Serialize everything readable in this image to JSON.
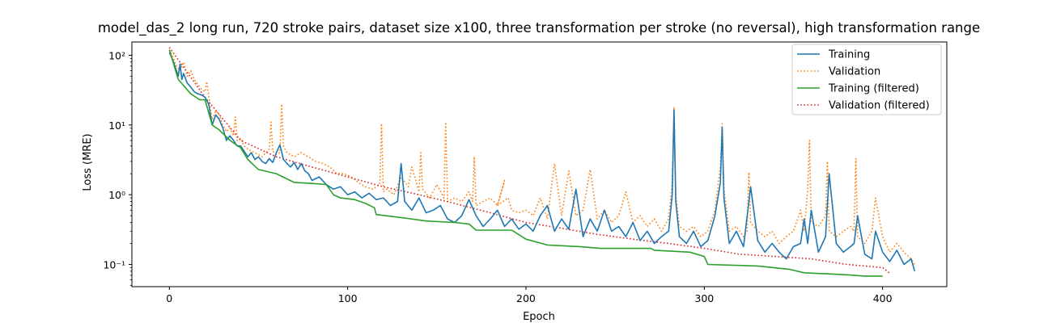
{
  "chart_data": {
    "type": "line",
    "title": "model_das_2 long run, 720 stroke pairs, dataset size x100, three transformation per stroke (no reversal), high transformation range",
    "xlabel": "Epoch",
    "ylabel": "Loss (MRE)",
    "xlim": [
      -21,
      436
    ],
    "ylim": [
      0.048,
      155
    ],
    "yscale": "log",
    "xticks": [
      0,
      100,
      200,
      300,
      400
    ],
    "xtick_labels": [
      "0",
      "100",
      "200",
      "300",
      "400"
    ],
    "yticks": [
      0.1,
      1,
      10,
      100
    ],
    "ytick_labels": [
      "10⁻¹",
      "10⁰",
      "10¹",
      "10²"
    ],
    "grid": false,
    "legend_position": "top-right",
    "series": [
      {
        "name": "Training",
        "color": "#1f77b4",
        "style": "solid",
        "x": [
          0,
          2,
          4,
          5,
          6,
          7,
          8,
          10,
          12,
          14,
          16,
          18,
          20,
          22,
          24,
          26,
          28,
          30,
          32,
          34,
          36,
          38,
          40,
          42,
          44,
          46,
          48,
          50,
          52,
          54,
          56,
          58,
          60,
          62,
          64,
          66,
          68,
          70,
          72,
          74,
          76,
          78,
          80,
          84,
          88,
          92,
          96,
          100,
          104,
          108,
          112,
          116,
          120,
          124,
          128,
          130,
          132,
          136,
          140,
          144,
          148,
          152,
          156,
          160,
          164,
          168,
          172,
          176,
          180,
          184,
          188,
          192,
          196,
          200,
          204,
          208,
          212,
          216,
          220,
          224,
          228,
          232,
          236,
          240,
          244,
          248,
          252,
          256,
          260,
          264,
          268,
          272,
          276,
          280,
          282,
          283,
          284,
          286,
          290,
          294,
          298,
          302,
          306,
          309,
          310,
          311,
          314,
          318,
          322,
          326,
          330,
          334,
          338,
          342,
          346,
          350,
          354,
          356,
          358,
          360,
          364,
          368,
          370,
          374,
          378,
          382,
          384,
          386,
          390,
          394,
          396,
          400,
          404,
          408,
          412,
          416,
          418
        ],
        "y": [
          110,
          85,
          60,
          50,
          75,
          45,
          55,
          40,
          35,
          30,
          28,
          27,
          25,
          20,
          10,
          14,
          12,
          9,
          6,
          7,
          6,
          5,
          5,
          4.2,
          3.5,
          4,
          3.2,
          3.5,
          3,
          2.8,
          3.3,
          2.9,
          4,
          5.2,
          3.2,
          2.8,
          2.5,
          2.9,
          2.3,
          2.8,
          2.2,
          2,
          1.6,
          1.8,
          1.4,
          1.2,
          1.3,
          1,
          1.1,
          0.9,
          1.05,
          0.85,
          0.9,
          0.7,
          0.8,
          2.8,
          0.8,
          0.6,
          0.9,
          0.55,
          0.6,
          0.7,
          0.45,
          0.4,
          0.5,
          0.85,
          0.5,
          0.35,
          0.45,
          0.6,
          0.35,
          0.45,
          0.32,
          0.38,
          0.3,
          0.5,
          0.7,
          0.3,
          0.45,
          0.32,
          1.2,
          0.25,
          0.45,
          0.3,
          0.6,
          0.3,
          0.35,
          0.25,
          0.4,
          0.22,
          0.3,
          0.2,
          0.25,
          0.3,
          1.0,
          16.5,
          0.8,
          0.25,
          0.2,
          0.3,
          0.18,
          0.22,
          0.5,
          1.5,
          9.2,
          0.9,
          0.2,
          0.3,
          0.18,
          1.3,
          0.22,
          0.15,
          0.2,
          0.15,
          0.12,
          0.18,
          0.2,
          0.45,
          0.2,
          0.6,
          0.15,
          0.25,
          2.0,
          0.2,
          0.15,
          0.18,
          0.2,
          0.5,
          0.14,
          0.12,
          0.3,
          0.15,
          0.11,
          0.16,
          0.1,
          0.12,
          0.08
        ]
      },
      {
        "name": "Validation",
        "color": "#ff7f0e",
        "style": "dotted",
        "x": [
          0,
          2,
          4,
          6,
          8,
          10,
          12,
          14,
          16,
          18,
          20,
          21,
          22,
          24,
          26,
          28,
          30,
          32,
          34,
          36,
          37,
          38,
          40,
          42,
          44,
          48,
          52,
          56,
          57,
          58,
          60,
          62,
          63,
          64,
          66,
          70,
          74,
          78,
          82,
          86,
          90,
          94,
          98,
          102,
          106,
          110,
          114,
          118,
          119,
          120,
          122,
          126,
          130,
          134,
          136,
          140,
          141,
          142,
          146,
          150,
          154,
          155,
          156,
          160,
          164,
          168,
          170,
          171,
          172,
          176,
          180,
          184,
          188,
          184,
          190,
          192,
          196,
          200,
          204,
          208,
          212,
          216,
          220,
          224,
          228,
          232,
          236,
          240,
          244,
          248,
          252,
          256,
          260,
          264,
          268,
          272,
          276,
          280,
          282,
          283,
          284,
          286,
          290,
          294,
          298,
          302,
          306,
          309,
          310,
          311,
          314,
          318,
          322,
          324,
          325,
          326,
          330,
          334,
          338,
          342,
          346,
          350,
          354,
          356,
          358,
          359,
          360,
          364,
          368,
          369,
          370,
          374,
          378,
          382,
          384,
          385,
          386,
          390,
          394,
          396,
          400,
          404,
          408,
          412,
          416,
          418
        ],
        "y": [
          120,
          95,
          70,
          60,
          80,
          50,
          60,
          45,
          38,
          33,
          30,
          42,
          27,
          12,
          16,
          14,
          10,
          8,
          9,
          7,
          13,
          6,
          6.5,
          5,
          4.5,
          4,
          3.5,
          4.5,
          11,
          4.2,
          3.8,
          4,
          20,
          5,
          4,
          3.5,
          4,
          3.5,
          3,
          2.8,
          2.5,
          2,
          2,
          1.8,
          1.5,
          1.3,
          1.2,
          1.4,
          10.5,
          1.1,
          1.2,
          1,
          1.8,
          1.3,
          2.5,
          1.1,
          4,
          1.2,
          0.9,
          1.4,
          0.9,
          11,
          0.8,
          0.9,
          0.8,
          1.1,
          0.8,
          3.5,
          0.7,
          0.8,
          0.9,
          0.7,
          1.6,
          0.7,
          0.9,
          0.6,
          0.55,
          0.6,
          0.5,
          0.9,
          0.45,
          2.8,
          0.5,
          2.2,
          0.5,
          0.6,
          2.3,
          0.45,
          0.6,
          0.4,
          0.5,
          1.1,
          0.4,
          0.5,
          0.35,
          0.45,
          0.3,
          0.45,
          1.5,
          18,
          1,
          0.35,
          0.3,
          0.35,
          0.25,
          0.3,
          0.6,
          2.5,
          10.5,
          1.2,
          0.3,
          0.35,
          0.25,
          0.3,
          2.1,
          0.4,
          0.3,
          0.25,
          0.3,
          0.2,
          0.25,
          0.3,
          0.6,
          0.3,
          1.2,
          6,
          0.4,
          0.35,
          0.5,
          3.0,
          0.3,
          0.25,
          0.3,
          0.35,
          0.3,
          3.3,
          0.25,
          0.2,
          0.3,
          0.9,
          0.25,
          0.15,
          0.2,
          0.15,
          0.12,
          0.1
        ]
      },
      {
        "name": "Training (filtered)",
        "color": "#2ca02c",
        "style": "solid",
        "x": [
          0,
          5,
          12,
          17,
          20,
          24,
          28,
          34,
          40,
          44,
          50,
          60,
          70,
          80,
          88,
          92,
          96,
          104,
          110,
          115,
          116,
          130,
          144,
          160,
          168,
          172,
          192,
          200,
          212,
          230,
          242,
          270,
          272,
          292,
          300,
          302,
          330,
          348,
          356,
          380,
          390,
          400
        ],
        "y": [
          120,
          45,
          28,
          23,
          23,
          10,
          8.5,
          6,
          4.7,
          3.2,
          2.3,
          2.0,
          1.5,
          1.45,
          1.4,
          1.0,
          0.9,
          0.85,
          0.75,
          0.65,
          0.52,
          0.47,
          0.42,
          0.4,
          0.38,
          0.31,
          0.31,
          0.23,
          0.19,
          0.18,
          0.17,
          0.17,
          0.16,
          0.15,
          0.13,
          0.1,
          0.095,
          0.085,
          0.076,
          0.071,
          0.068,
          0.068
        ]
      },
      {
        "name": "Validation (filtered)",
        "color": "#d62728",
        "style": "dotted",
        "x": [
          0,
          20,
          40,
          60,
          80,
          100,
          120,
          140,
          160,
          180,
          200,
          220,
          240,
          260,
          280,
          300,
          320,
          340,
          360,
          380,
          400,
          404
        ],
        "y": [
          130,
          25,
          6,
          3.5,
          2.5,
          1.8,
          1.3,
          1.0,
          0.75,
          0.55,
          0.4,
          0.33,
          0.27,
          0.23,
          0.2,
          0.17,
          0.14,
          0.13,
          0.12,
          0.1,
          0.09,
          0.075
        ]
      }
    ]
  }
}
